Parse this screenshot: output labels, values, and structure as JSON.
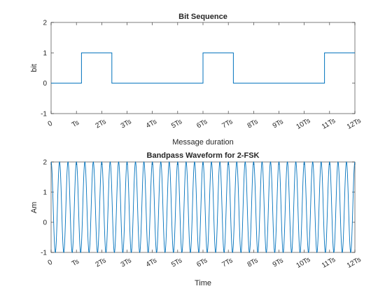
{
  "chart_data": [
    {
      "type": "line",
      "title": "Bit Sequence",
      "xlabel": "Message duration",
      "ylabel": "bit",
      "xlim": [
        0,
        12
      ],
      "ylim": [
        -1,
        2
      ],
      "x_ticks": [
        0,
        1,
        2,
        3,
        4,
        5,
        6,
        7,
        8,
        9,
        10,
        11,
        12
      ],
      "x_tick_labels": [
        "0",
        "Ts",
        "2Ts",
        "3Ts",
        "4Ts",
        "5Ts",
        "6Ts",
        "7Ts",
        "8Ts",
        "9Ts",
        "10Ts",
        "11Ts",
        "12Ts"
      ],
      "y_ticks": [
        -1,
        0,
        1,
        2
      ],
      "y_tick_labels": [
        "-1",
        "0",
        "1",
        "2"
      ],
      "color": "#0072bd",
      "series": [
        {
          "x": [
            0,
            1.2,
            1.2,
            2.4,
            2.4,
            6.0,
            6.0,
            7.2,
            7.2,
            10.8,
            10.8,
            12
          ],
          "y": [
            0,
            0,
            1,
            1,
            0,
            0,
            1,
            1,
            0,
            0,
            1,
            1
          ]
        }
      ]
    },
    {
      "type": "line",
      "title": "Bandpass Waveform for 2-FSK",
      "xlabel": "Time",
      "ylabel": "Am",
      "xlim": [
        0,
        12
      ],
      "ylim": [
        -1,
        2
      ],
      "x_ticks": [
        0,
        1,
        2,
        3,
        4,
        5,
        6,
        7,
        8,
        9,
        10,
        11,
        12
      ],
      "x_tick_labels": [
        "0",
        "Ts",
        "2Ts",
        "3Ts",
        "4Ts",
        "5Ts",
        "6Ts",
        "7Ts",
        "8Ts",
        "9Ts",
        "10Ts",
        "11Ts",
        "12Ts"
      ],
      "y_ticks": [
        -1,
        0,
        1,
        2
      ],
      "y_tick_labels": [
        "-1",
        "0",
        "1",
        "2"
      ],
      "color": "#0072bd",
      "series": [
        {
          "signal": "cosine oscillating between -1 and 2",
          "cycles_per_Ts": 3
        }
      ]
    }
  ]
}
